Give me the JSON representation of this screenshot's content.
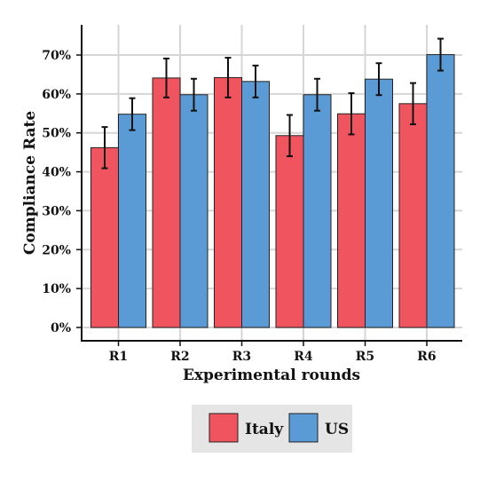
{
  "chart_data": {
    "type": "bar",
    "xlabel": "Experimental rounds",
    "ylabel": "Compliance Rate",
    "categories": [
      "R1",
      "R2",
      "R3",
      "R4",
      "R5",
      "R6"
    ],
    "y_ticks": [
      "0%",
      "10%",
      "20%",
      "30%",
      "40%",
      "50%",
      "60%",
      "70%"
    ],
    "ylim": [
      0,
      78
    ],
    "grid": true,
    "legend_position": "bottom",
    "series": [
      {
        "name": "Italy",
        "color": "#f0545f",
        "values": [
          46.2,
          64.1,
          64.2,
          49.3,
          54.9,
          57.5
        ],
        "error_low": [
          40.9,
          59.1,
          59.1,
          44.0,
          49.6,
          52.2
        ],
        "error_high": [
          51.5,
          69.1,
          69.3,
          54.6,
          60.2,
          62.8
        ]
      },
      {
        "name": "US",
        "color": "#5b9bd5",
        "values": [
          54.8,
          59.8,
          63.2,
          59.8,
          63.8,
          70.1
        ],
        "error_low": [
          50.7,
          55.7,
          59.1,
          55.7,
          59.7,
          66.0
        ],
        "error_high": [
          58.9,
          63.9,
          67.3,
          63.9,
          67.9,
          74.2
        ]
      }
    ]
  }
}
